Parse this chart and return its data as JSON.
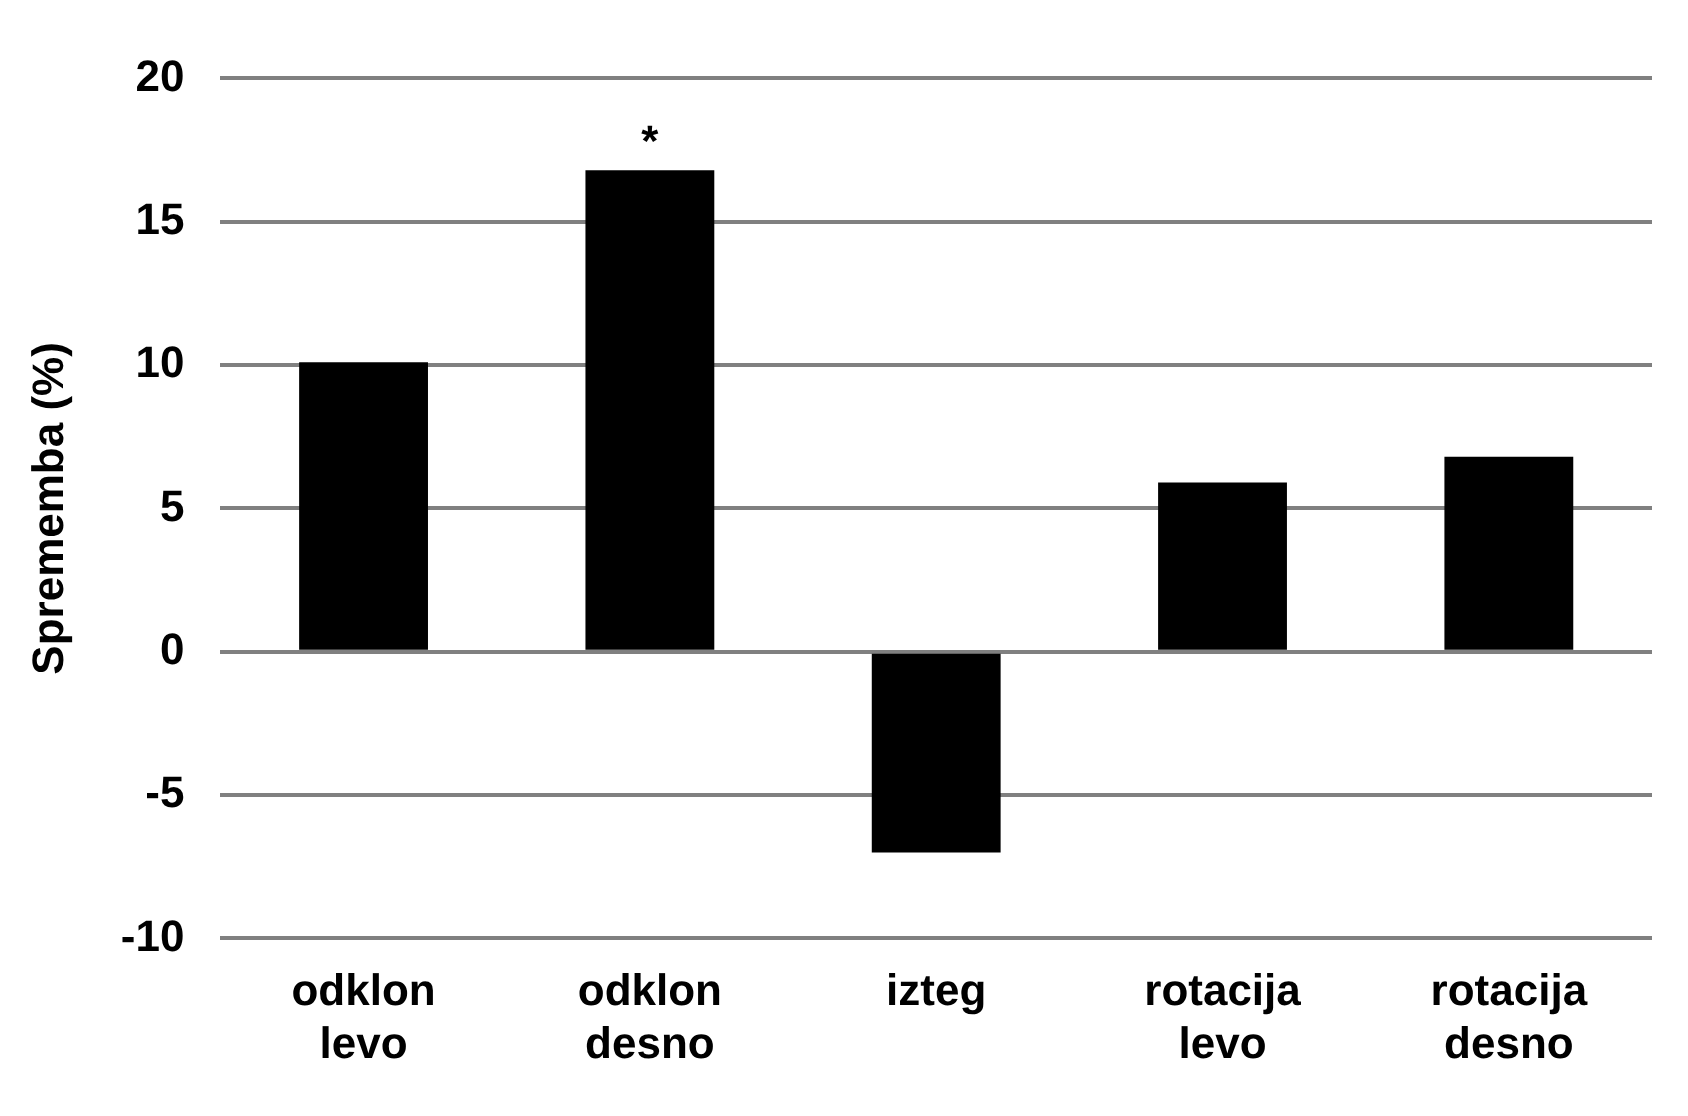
{
  "chart_data": {
    "type": "bar",
    "ylabel": "Sprememba (%)",
    "categories": [
      "odklon levo",
      "odklon desno",
      "izteg",
      "rotacija levo",
      "rotacija desno"
    ],
    "values": [
      10.1,
      16.8,
      -7.0,
      5.9,
      6.8
    ],
    "color": "#000000",
    "ylim": [
      -10,
      20
    ],
    "yticks": [
      -10,
      -5,
      0,
      5,
      10,
      15,
      20
    ],
    "grid": "y",
    "annotations": [
      {
        "text": "*",
        "x": "odklon desno",
        "y": 16.8
      }
    ]
  }
}
